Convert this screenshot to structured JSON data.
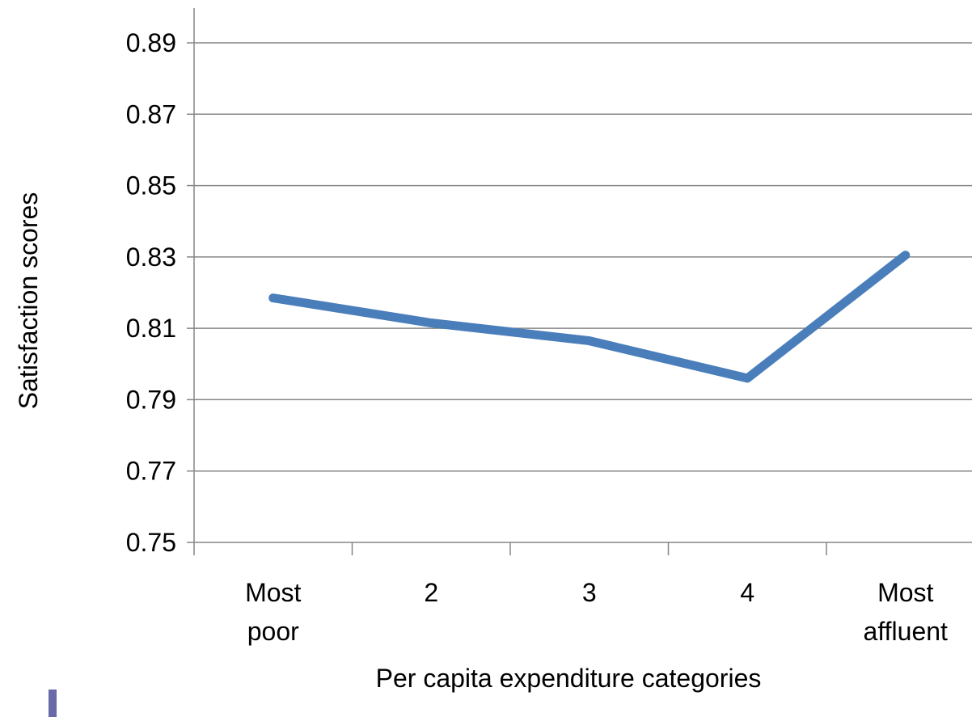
{
  "chart_data": {
    "type": "line",
    "title": "",
    "xlabel": "Per capita expenditure categories",
    "ylabel": "Satisfaction scores",
    "categories": [
      [
        "Most",
        "poor"
      ],
      [
        "2"
      ],
      [
        "3"
      ],
      [
        "4"
      ],
      [
        "Most",
        "affluent"
      ]
    ],
    "series": [
      {
        "values": [
          0.8185,
          0.8115,
          0.8065,
          0.796,
          0.8305
        ],
        "color": "#4a7ebb"
      }
    ],
    "ylim": [
      0.75,
      0.89
    ],
    "yticks": [
      "0.75",
      "0.77",
      "0.79",
      "0.81",
      "0.83",
      "0.85",
      "0.87",
      "0.89"
    ],
    "grid": true,
    "legend": "none"
  }
}
